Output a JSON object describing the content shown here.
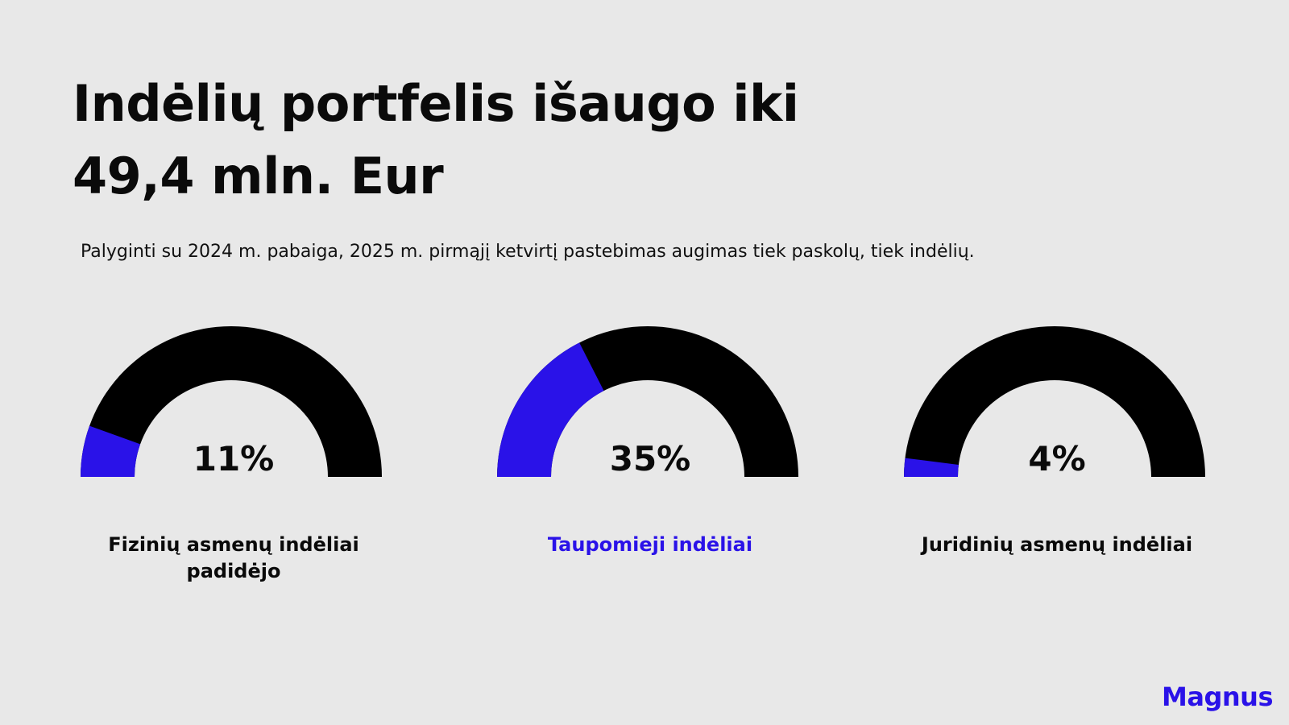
{
  "title_lines": [
    "Indėlių portfelis išaugo iki",
    "49,4 mln. Eur"
  ],
  "subtitle": "Palyginti su 2024 m. pabaiga, 2025 m. pirmąjį ketvirtį pastebimas augimas tiek paskolų, tiek indėlių.",
  "logo": "Magnus",
  "colors": {
    "accent": "#2a12e8",
    "track": "#000000",
    "background": "#e8e8e8",
    "text": "#0a0a0a"
  },
  "chart_data": [
    {
      "type": "gauge",
      "value": 11,
      "value_label": "11%",
      "label": "Fizinių asmenų indėliai padidėjo",
      "label_color": "#0a0a0a"
    },
    {
      "type": "gauge",
      "value": 35,
      "value_label": "35%",
      "label": "Taupomieji indėliai",
      "label_color": "#2a12e8"
    },
    {
      "type": "gauge",
      "value": 4,
      "value_label": "4%",
      "label": "Juridinių asmenų indėliai",
      "label_color": "#0a0a0a"
    }
  ]
}
